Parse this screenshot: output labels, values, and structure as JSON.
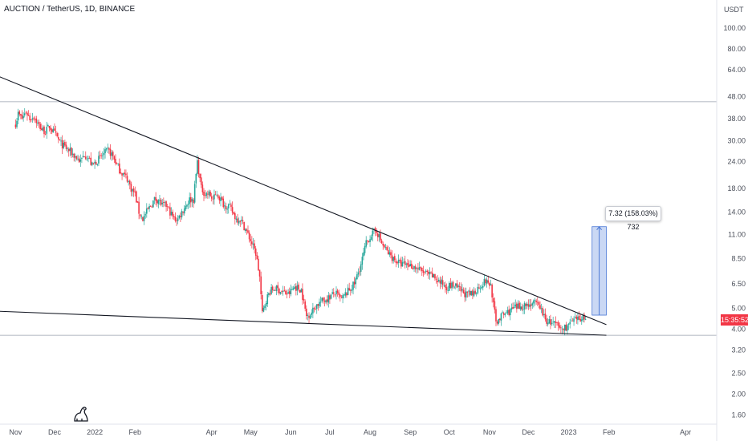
{
  "header": {
    "title": "AUCTION / TetherUS, 1D, BINANCE"
  },
  "colors": {
    "up": "#26a69a",
    "down": "#f23645",
    "trendline": "#131722",
    "range_fill": "#b3c8ef",
    "range_border": "#4a78d6",
    "grid": "#9aa0ad"
  },
  "price_badge": {
    "value": "15:35:52"
  },
  "measure": {
    "label": "7.32 (158.03%) 732"
  },
  "icons": {
    "logo": "tradingview-dino-icon"
  },
  "chart_data": {
    "type": "candlestick",
    "symbol": "AUCTION / TetherUS",
    "interval": "1D",
    "exchange": "BINANCE",
    "y_axis": {
      "unit": "USDT",
      "scale": "log",
      "range": [
        1.45,
        135
      ],
      "tick_labels": [
        "100.00",
        "80.00",
        "64.00",
        "48.00",
        "38.00",
        "30.00",
        "24.00",
        "18.00",
        "14.00",
        "11.00",
        "8.50",
        "6.50",
        "5.00",
        "4.00",
        "3.20",
        "2.50",
        "2.00",
        "1.60"
      ],
      "tick_values": [
        100,
        80,
        64,
        48,
        38,
        30,
        24,
        18,
        14,
        11,
        8.5,
        6.5,
        5,
        4,
        3.2,
        2.5,
        2,
        1.6
      ]
    },
    "x_axis": {
      "tick_labels": [
        "Nov",
        "Dec",
        "2022",
        "Feb",
        "Apr",
        "May",
        "Jun",
        "Jul",
        "Aug",
        "Sep",
        "Oct",
        "Nov",
        "Dec",
        "2023",
        "Feb",
        "Apr"
      ],
      "tick_dates": [
        "2021-11-01",
        "2021-12-01",
        "2022-01-01",
        "2022-02-01",
        "2022-04-01",
        "2022-05-01",
        "2022-06-01",
        "2022-07-01",
        "2022-08-01",
        "2022-09-01",
        "2022-10-01",
        "2022-11-01",
        "2022-12-01",
        "2023-01-01",
        "2023-02-01",
        "2023-04-01"
      ],
      "range": [
        "2021-10-20",
        "2023-04-25"
      ]
    },
    "horizontal_lines": [
      45.5,
      3.75
    ],
    "trendlines": [
      {
        "from": [
          "2021-10-18",
          60
        ],
        "to": [
          "2023-01-30",
          4.2
        ]
      },
      {
        "from": [
          "2021-10-18",
          4.85
        ],
        "to": [
          "2023-01-30",
          3.75
        ]
      }
    ],
    "price_range": {
      "from_date": "2023-01-19",
      "to_date": "2023-01-30",
      "low": 4.65,
      "high": 11.97,
      "change": "7.32 (158.03%) 732"
    },
    "path": [
      [
        "2021-11-01",
        36
      ],
      [
        "2021-11-03",
        40
      ],
      [
        "2021-11-06",
        38
      ],
      [
        "2021-11-09",
        41
      ],
      [
        "2021-11-12",
        38
      ],
      [
        "2021-11-15",
        39
      ],
      [
        "2021-11-18",
        36
      ],
      [
        "2021-11-21",
        34
      ],
      [
        "2021-11-24",
        33
      ],
      [
        "2021-11-27",
        35
      ],
      [
        "2021-11-30",
        33
      ],
      [
        "2021-12-03",
        31
      ],
      [
        "2021-12-06",
        29
      ],
      [
        "2021-12-09",
        28
      ],
      [
        "2021-12-12",
        27
      ],
      [
        "2021-12-15",
        26
      ],
      [
        "2021-12-18",
        25
      ],
      [
        "2021-12-21",
        24
      ],
      [
        "2021-12-24",
        26
      ],
      [
        "2021-12-27",
        25
      ],
      [
        "2021-12-30",
        23
      ],
      [
        "2022-01-02",
        24
      ],
      [
        "2022-01-05",
        25
      ],
      [
        "2022-01-08",
        26
      ],
      [
        "2022-01-11",
        27
      ],
      [
        "2022-01-14",
        26
      ],
      [
        "2022-01-17",
        24
      ],
      [
        "2022-01-20",
        22
      ],
      [
        "2022-01-23",
        21
      ],
      [
        "2022-01-26",
        20
      ],
      [
        "2022-01-29",
        18
      ],
      [
        "2022-02-01",
        17
      ],
      [
        "2022-02-04",
        14
      ],
      [
        "2022-02-07",
        13
      ],
      [
        "2022-02-10",
        14
      ],
      [
        "2022-02-13",
        15
      ],
      [
        "2022-02-16",
        16
      ],
      [
        "2022-02-19",
        16
      ],
      [
        "2022-02-22",
        15
      ],
      [
        "2022-02-25",
        15
      ],
      [
        "2022-02-28",
        14
      ],
      [
        "2022-03-03",
        13
      ],
      [
        "2022-03-06",
        13
      ],
      [
        "2022-03-09",
        14
      ],
      [
        "2022-03-12",
        15
      ],
      [
        "2022-03-15",
        16
      ],
      [
        "2022-03-18",
        16
      ],
      [
        "2022-03-21",
        24
      ],
      [
        "2022-03-24",
        18
      ],
      [
        "2022-03-27",
        17
      ],
      [
        "2022-03-30",
        17
      ],
      [
        "2022-04-02",
        16
      ],
      [
        "2022-04-05",
        17
      ],
      [
        "2022-04-08",
        16
      ],
      [
        "2022-04-11",
        15
      ],
      [
        "2022-04-14",
        15
      ],
      [
        "2022-04-17",
        14
      ],
      [
        "2022-04-20",
        13
      ],
      [
        "2022-04-23",
        13
      ],
      [
        "2022-04-26",
        12
      ],
      [
        "2022-04-29",
        11
      ],
      [
        "2022-05-02",
        10
      ],
      [
        "2022-05-05",
        9
      ],
      [
        "2022-05-08",
        7
      ],
      [
        "2022-05-10",
        4.7
      ],
      [
        "2022-05-13",
        5.5
      ],
      [
        "2022-05-16",
        6
      ],
      [
        "2022-05-20",
        6.2
      ],
      [
        "2022-05-25",
        6
      ],
      [
        "2022-05-30",
        5.8
      ],
      [
        "2022-06-04",
        6.3
      ],
      [
        "2022-06-09",
        6.1
      ],
      [
        "2022-06-13",
        4.6
      ],
      [
        "2022-06-17",
        4.8
      ],
      [
        "2022-06-21",
        5.2
      ],
      [
        "2022-06-25",
        5.4
      ],
      [
        "2022-06-30",
        5.6
      ],
      [
        "2022-07-05",
        5.9
      ],
      [
        "2022-07-10",
        5.5
      ],
      [
        "2022-07-15",
        6
      ],
      [
        "2022-07-20",
        6.5
      ],
      [
        "2022-07-25",
        8
      ],
      [
        "2022-07-29",
        10
      ],
      [
        "2022-08-02",
        11
      ],
      [
        "2022-08-06",
        11.5
      ],
      [
        "2022-08-10",
        10
      ],
      [
        "2022-08-15",
        9
      ],
      [
        "2022-08-20",
        8.4
      ],
      [
        "2022-08-25",
        8
      ],
      [
        "2022-08-30",
        8
      ],
      [
        "2022-09-04",
        7.8
      ],
      [
        "2022-09-09",
        7.5
      ],
      [
        "2022-09-14",
        7.2
      ],
      [
        "2022-09-19",
        7
      ],
      [
        "2022-09-24",
        6.6
      ],
      [
        "2022-09-29",
        6.3
      ],
      [
        "2022-10-04",
        6.4
      ],
      [
        "2022-10-09",
        6.1
      ],
      [
        "2022-10-14",
        5.8
      ],
      [
        "2022-10-19",
        5.8
      ],
      [
        "2022-10-24",
        6.3
      ],
      [
        "2022-10-29",
        6.7
      ],
      [
        "2022-11-02",
        6.4
      ],
      [
        "2022-11-06",
        4.3
      ],
      [
        "2022-11-10",
        4.6
      ],
      [
        "2022-11-15",
        4.8
      ],
      [
        "2022-11-20",
        5.0
      ],
      [
        "2022-11-25",
        5.1
      ],
      [
        "2022-11-30",
        5.2
      ],
      [
        "2022-12-05",
        5.3
      ],
      [
        "2022-12-10",
        5.1
      ],
      [
        "2022-12-14",
        4.4
      ],
      [
        "2022-12-18",
        4.3
      ],
      [
        "2022-12-22",
        4.2
      ],
      [
        "2022-12-26",
        4.0
      ],
      [
        "2022-12-30",
        4.1
      ],
      [
        "2023-01-03",
        4.3
      ],
      [
        "2023-01-07",
        4.4
      ],
      [
        "2023-01-11",
        4.5
      ],
      [
        "2023-01-14",
        4.6
      ]
    ]
  }
}
